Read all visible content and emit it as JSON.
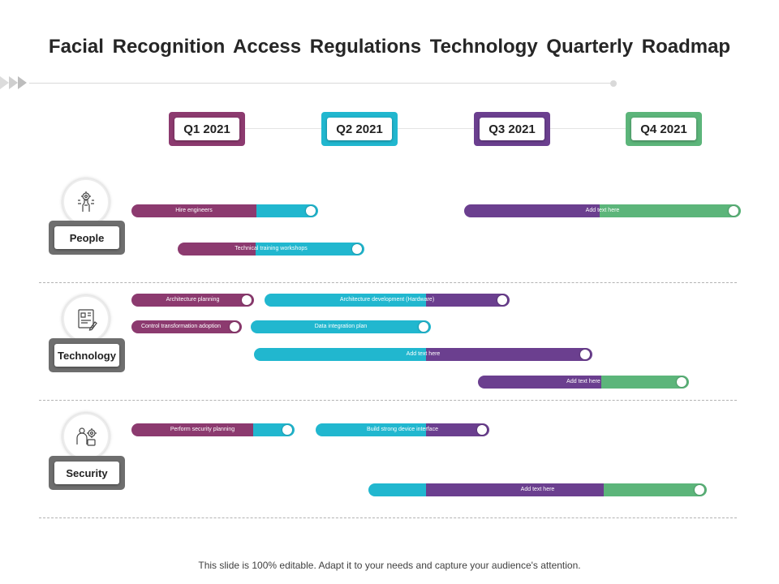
{
  "title": "Facial Recognition Access Regulations Technology Quarterly Roadmap",
  "quarters": [
    "Q1 2021",
    "Q2 2021",
    "Q3 2021",
    "Q4 2021"
  ],
  "categories": [
    {
      "label": "People",
      "icon": "hand-gear-icon"
    },
    {
      "label": "Technology",
      "icon": "blueprint-pencil-icon"
    },
    {
      "label": "Security",
      "icon": "person-gear-icon"
    }
  ],
  "tasks": {
    "hire_engineers": "Hire engineers",
    "people_add_text": "Add text here",
    "technical_training": "Technical  training workshops",
    "architecture_planning": "Architecture  planning",
    "architecture_development": "Architecture  development  (Hardware)",
    "control_transformation": "Control  transformation  adoption",
    "data_integration": "Data integration  plan",
    "tech_add_text_1": "Add text here",
    "tech_add_text_2": "Add text here",
    "security_planning": "Perform  security planning",
    "device_interface": "Build strong  device interface",
    "security_add_text": "Add text here"
  },
  "colors": {
    "magenta": "#8c3a6f",
    "cyan": "#21b7cf",
    "purple": "#6b3f8f",
    "green": "#5cb57a"
  },
  "footer": "This slide is 100% editable. Adapt it to your needs and capture your audience's attention."
}
